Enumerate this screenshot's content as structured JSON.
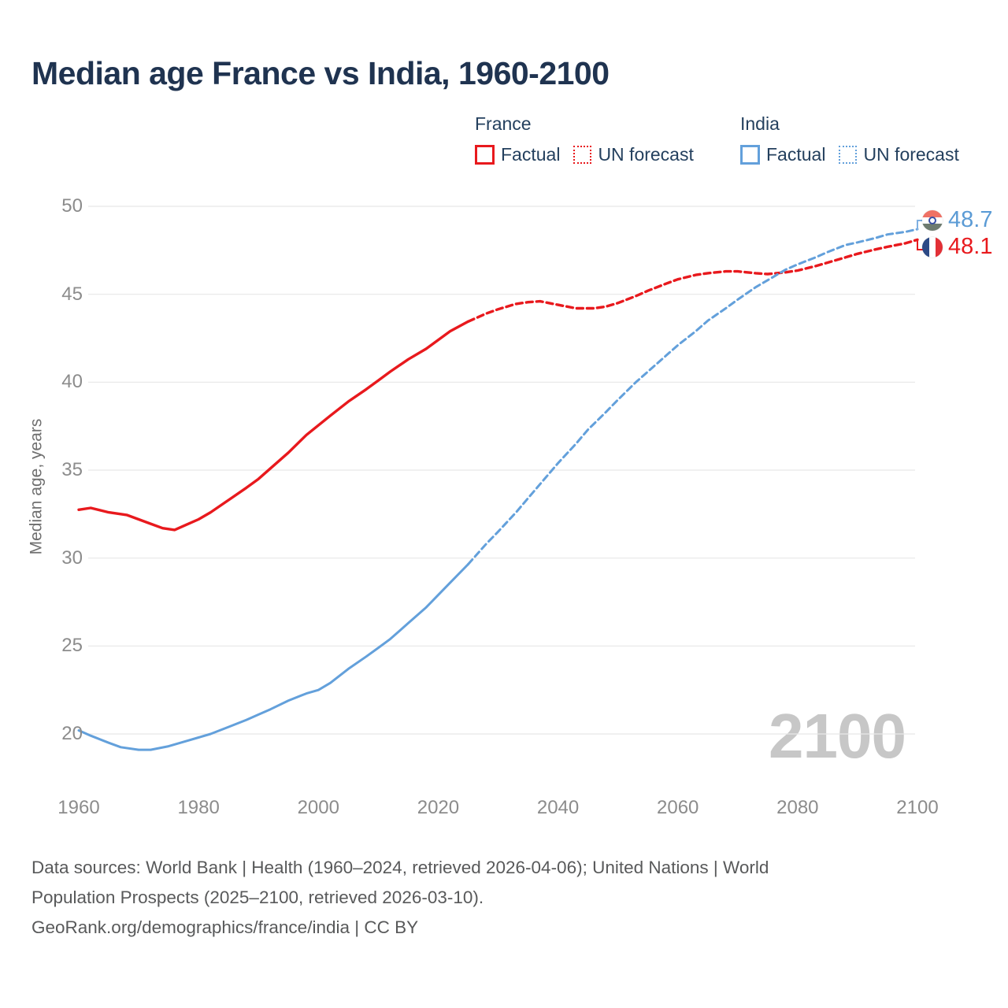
{
  "header": {
    "title": "Median age France vs India, 1960-2100"
  },
  "legend": {
    "groups": [
      {
        "title": "France",
        "items": [
          {
            "label": "Factual",
            "style": "solid",
            "color": "#e8191d"
          },
          {
            "label": "UN forecast",
            "style": "dotted",
            "color": "#e8191d"
          }
        ]
      },
      {
        "title": "India",
        "items": [
          {
            "label": "Factual",
            "style": "solid",
            "color": "#63a0db"
          },
          {
            "label": "UN forecast",
            "style": "dotted",
            "color": "#63a0db"
          }
        ]
      }
    ]
  },
  "axes": {
    "y_title": "Median age, years",
    "y_ticks": [
      50,
      45,
      40,
      35,
      30,
      25,
      20
    ],
    "x_ticks": [
      1960,
      1980,
      2000,
      2020,
      2040,
      2060,
      2080,
      2100
    ]
  },
  "end_labels": [
    {
      "country": "India",
      "value": "48.7",
      "color": "#5b9bd5",
      "flag": "india-flag"
    },
    {
      "country": "France",
      "value": "48.1",
      "color": "#e8191d",
      "flag": "france-flag"
    }
  ],
  "watermark": "2100",
  "footer": {
    "lines": [
      "Data sources: World Bank | Health (1960–2024, retrieved 2026-04-06); United Nations | World",
      "Population Prospects (2025–2100, retrieved 2026-03-10).",
      "GeoRank.org/demographics/france/india | CC BY"
    ]
  },
  "chart_data": {
    "type": "line",
    "title": "Median age France vs India, 1960-2100",
    "xlabel": "",
    "ylabel": "Median age, years",
    "xlim": [
      1960,
      2100
    ],
    "ylim": [
      18.5,
      50.5
    ],
    "grid": true,
    "legend_position": "top",
    "series": [
      {
        "name": "France factual",
        "color": "#e8191d",
        "line": "solid",
        "points": [
          [
            1960,
            32.75
          ],
          [
            1962,
            32.85
          ],
          [
            1965,
            32.6
          ],
          [
            1968,
            32.45
          ],
          [
            1970,
            32.2
          ],
          [
            1972,
            31.95
          ],
          [
            1974,
            31.7
          ],
          [
            1976,
            31.6
          ],
          [
            1978,
            31.9
          ],
          [
            1980,
            32.2
          ],
          [
            1982,
            32.6
          ],
          [
            1985,
            33.3
          ],
          [
            1988,
            34.0
          ],
          [
            1990,
            34.5
          ],
          [
            1992,
            35.1
          ],
          [
            1995,
            36.0
          ],
          [
            1998,
            37.0
          ],
          [
            2000,
            37.55
          ],
          [
            2002,
            38.1
          ],
          [
            2005,
            38.9
          ],
          [
            2008,
            39.6
          ],
          [
            2010,
            40.1
          ],
          [
            2012,
            40.6
          ],
          [
            2015,
            41.3
          ],
          [
            2018,
            41.9
          ],
          [
            2020,
            42.4
          ],
          [
            2022,
            42.9
          ],
          [
            2025,
            43.45
          ]
        ]
      },
      {
        "name": "France UN forecast",
        "color": "#e8191d",
        "line": "dashed",
        "points": [
          [
            2025,
            43.45
          ],
          [
            2028,
            43.9
          ],
          [
            2030,
            44.15
          ],
          [
            2033,
            44.45
          ],
          [
            2035,
            44.55
          ],
          [
            2037,
            44.6
          ],
          [
            2040,
            44.4
          ],
          [
            2043,
            44.2
          ],
          [
            2046,
            44.2
          ],
          [
            2048,
            44.3
          ],
          [
            2050,
            44.5
          ],
          [
            2053,
            44.9
          ],
          [
            2055,
            45.2
          ],
          [
            2058,
            45.6
          ],
          [
            2060,
            45.85
          ],
          [
            2063,
            46.1
          ],
          [
            2065,
            46.2
          ],
          [
            2068,
            46.3
          ],
          [
            2070,
            46.3
          ],
          [
            2073,
            46.2
          ],
          [
            2075,
            46.15
          ],
          [
            2078,
            46.25
          ],
          [
            2080,
            46.35
          ],
          [
            2083,
            46.6
          ],
          [
            2085,
            46.8
          ],
          [
            2088,
            47.1
          ],
          [
            2090,
            47.3
          ],
          [
            2093,
            47.55
          ],
          [
            2095,
            47.7
          ],
          [
            2098,
            47.9
          ],
          [
            2100,
            48.1
          ]
        ]
      },
      {
        "name": "India factual",
        "color": "#63a0db",
        "line": "solid",
        "points": [
          [
            1960,
            20.2
          ],
          [
            1962,
            19.9
          ],
          [
            1965,
            19.5
          ],
          [
            1967,
            19.25
          ],
          [
            1970,
            19.1
          ],
          [
            1972,
            19.1
          ],
          [
            1975,
            19.3
          ],
          [
            1978,
            19.6
          ],
          [
            1980,
            19.8
          ],
          [
            1982,
            20.0
          ],
          [
            1985,
            20.4
          ],
          [
            1988,
            20.8
          ],
          [
            1990,
            21.1
          ],
          [
            1992,
            21.4
          ],
          [
            1995,
            21.9
          ],
          [
            1998,
            22.3
          ],
          [
            2000,
            22.5
          ],
          [
            2002,
            22.9
          ],
          [
            2005,
            23.7
          ],
          [
            2008,
            24.4
          ],
          [
            2010,
            24.9
          ],
          [
            2012,
            25.4
          ],
          [
            2015,
            26.3
          ],
          [
            2018,
            27.2
          ],
          [
            2020,
            27.9
          ],
          [
            2022,
            28.6
          ],
          [
            2025,
            29.65
          ]
        ]
      },
      {
        "name": "India UN forecast",
        "color": "#63a0db",
        "line": "dashed",
        "points": [
          [
            2025,
            29.65
          ],
          [
            2028,
            30.8
          ],
          [
            2030,
            31.5
          ],
          [
            2033,
            32.6
          ],
          [
            2035,
            33.4
          ],
          [
            2038,
            34.6
          ],
          [
            2040,
            35.4
          ],
          [
            2043,
            36.5
          ],
          [
            2045,
            37.3
          ],
          [
            2048,
            38.3
          ],
          [
            2050,
            39.0
          ],
          [
            2053,
            40.0
          ],
          [
            2055,
            40.6
          ],
          [
            2058,
            41.5
          ],
          [
            2060,
            42.1
          ],
          [
            2063,
            42.9
          ],
          [
            2065,
            43.5
          ],
          [
            2068,
            44.2
          ],
          [
            2070,
            44.7
          ],
          [
            2073,
            45.4
          ],
          [
            2075,
            45.8
          ],
          [
            2078,
            46.4
          ],
          [
            2080,
            46.7
          ],
          [
            2083,
            47.1
          ],
          [
            2085,
            47.4
          ],
          [
            2088,
            47.8
          ],
          [
            2090,
            47.95
          ],
          [
            2093,
            48.2
          ],
          [
            2095,
            48.4
          ],
          [
            2098,
            48.55
          ],
          [
            2100,
            48.7
          ]
        ]
      }
    ]
  }
}
